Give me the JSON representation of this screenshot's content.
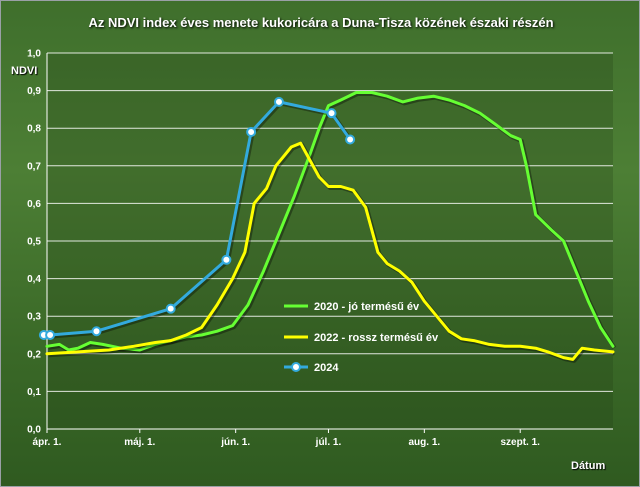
{
  "chart_data": {
    "type": "line",
    "title": "Az NDVI index éves menete kukoricára a Duna-Tisza közének északi részén",
    "ylabel": "NDVI",
    "xlabel": "Dátum",
    "ylim": [
      0,
      1.0
    ],
    "yticks": [
      "0,0",
      "0,1",
      "0,2",
      "0,3",
      "0,4",
      "0,5",
      "0,6",
      "0,7",
      "0,8",
      "0,9",
      "1,0"
    ],
    "xticks": [
      {
        "label": "ápr. 1.",
        "day": 0
      },
      {
        "label": "máj. 1.",
        "day": 30
      },
      {
        "label": "jún. 1.",
        "day": 61
      },
      {
        "label": "júl. 1.",
        "day": 91
      },
      {
        "label": "aug. 1.",
        "day": 122
      },
      {
        "label": "szept. 1.",
        "day": 153
      }
    ],
    "xlim_day": [
      0,
      183
    ],
    "grid": true,
    "legend_position": "center-right",
    "series": [
      {
        "name": "2020 - jó termésű év",
        "color": "#66ff33",
        "markers": false,
        "points": [
          [
            0,
            0.22
          ],
          [
            4,
            0.225
          ],
          [
            7,
            0.21
          ],
          [
            10,
            0.215
          ],
          [
            14,
            0.23
          ],
          [
            18,
            0.225
          ],
          [
            24,
            0.215
          ],
          [
            30,
            0.21
          ],
          [
            35,
            0.225
          ],
          [
            40,
            0.235
          ],
          [
            45,
            0.245
          ],
          [
            50,
            0.25
          ],
          [
            55,
            0.26
          ],
          [
            60,
            0.275
          ],
          [
            65,
            0.33
          ],
          [
            70,
            0.42
          ],
          [
            75,
            0.52
          ],
          [
            80,
            0.62
          ],
          [
            85,
            0.73
          ],
          [
            88,
            0.8
          ],
          [
            91,
            0.86
          ],
          [
            95,
            0.875
          ],
          [
            100,
            0.895
          ],
          [
            105,
            0.895
          ],
          [
            110,
            0.885
          ],
          [
            115,
            0.87
          ],
          [
            120,
            0.88
          ],
          [
            125,
            0.885
          ],
          [
            130,
            0.875
          ],
          [
            135,
            0.86
          ],
          [
            140,
            0.84
          ],
          [
            145,
            0.81
          ],
          [
            150,
            0.78
          ],
          [
            153,
            0.77
          ],
          [
            155,
            0.7
          ],
          [
            158,
            0.57
          ],
          [
            163,
            0.53
          ],
          [
            167,
            0.5
          ],
          [
            171,
            0.42
          ],
          [
            175,
            0.34
          ],
          [
            179,
            0.27
          ],
          [
            183,
            0.22
          ]
        ]
      },
      {
        "name": "2022 - rossz termésű év",
        "color": "#ffff00",
        "markers": false,
        "points": [
          [
            0,
            0.2
          ],
          [
            10,
            0.205
          ],
          [
            20,
            0.21
          ],
          [
            28,
            0.22
          ],
          [
            35,
            0.23
          ],
          [
            40,
            0.235
          ],
          [
            45,
            0.25
          ],
          [
            50,
            0.27
          ],
          [
            55,
            0.33
          ],
          [
            60,
            0.4
          ],
          [
            64,
            0.47
          ],
          [
            67,
            0.6
          ],
          [
            71,
            0.64
          ],
          [
            74,
            0.7
          ],
          [
            77,
            0.73
          ],
          [
            79,
            0.75
          ],
          [
            82,
            0.76
          ],
          [
            84,
            0.73
          ],
          [
            88,
            0.67
          ],
          [
            91,
            0.645
          ],
          [
            95,
            0.645
          ],
          [
            99,
            0.635
          ],
          [
            103,
            0.59
          ],
          [
            107,
            0.47
          ],
          [
            110,
            0.44
          ],
          [
            114,
            0.42
          ],
          [
            118,
            0.39
          ],
          [
            122,
            0.34
          ],
          [
            126,
            0.3
          ],
          [
            130,
            0.26
          ],
          [
            134,
            0.24
          ],
          [
            138,
            0.235
          ],
          [
            143,
            0.225
          ],
          [
            148,
            0.22
          ],
          [
            153,
            0.22
          ],
          [
            158,
            0.215
          ],
          [
            162,
            0.205
          ],
          [
            167,
            0.19
          ],
          [
            170,
            0.185
          ],
          [
            173,
            0.215
          ],
          [
            177,
            0.21
          ],
          [
            183,
            0.205
          ]
        ]
      },
      {
        "name": "2024",
        "color": "#33aadd",
        "markers": true,
        "points": [
          [
            -1,
            0.25
          ],
          [
            1,
            0.25
          ],
          [
            16,
            0.26
          ],
          [
            40,
            0.32
          ],
          [
            58,
            0.45
          ],
          [
            66,
            0.79
          ],
          [
            75,
            0.87
          ],
          [
            92,
            0.84
          ],
          [
            98,
            0.77
          ]
        ]
      }
    ]
  }
}
